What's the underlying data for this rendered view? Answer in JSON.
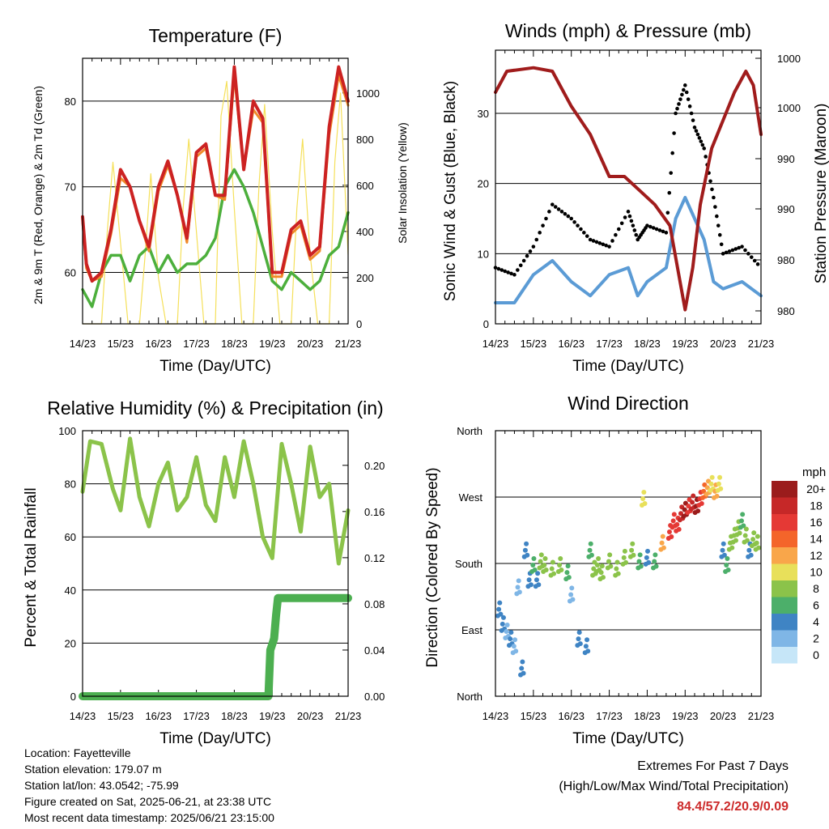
{
  "chart_data": [
    {
      "type": "line",
      "title": "Temperature (F)",
      "xlabel": "Time (Day/UTC)",
      "ylabel": "2m & 9m T (Red, Orange) & 2m Td (Green)",
      "y2label": "Solar Insolation (Yellow)",
      "x_ticks": [
        "14/23",
        "15/23",
        "16/23",
        "17/23",
        "18/23",
        "19/23",
        "20/23",
        "21/23"
      ],
      "ylim": [
        54,
        85
      ],
      "y_ticks": [
        60,
        70,
        80
      ],
      "y2lim": [
        0,
        1150
      ],
      "y2_ticks": [
        0,
        200,
        400,
        600,
        800,
        1000
      ],
      "grid": true,
      "series": [
        {
          "name": "2m T",
          "color": "#cc2222",
          "x": [
            0,
            0.1,
            0.25,
            0.5,
            0.75,
            1,
            1.25,
            1.5,
            1.75,
            2,
            2.25,
            2.5,
            2.75,
            3,
            3.25,
            3.5,
            3.75,
            4,
            4.25,
            4.5,
            4.75,
            5,
            5.25,
            5.5,
            5.75,
            6,
            6.25,
            6.5,
            6.75,
            7
          ],
          "y": [
            66.5,
            61,
            59,
            60,
            65,
            72,
            70,
            66,
            63,
            70,
            73,
            69,
            64,
            74,
            75,
            69,
            69,
            84,
            72,
            80,
            78,
            60,
            60,
            65,
            66,
            62,
            63,
            77,
            84,
            80
          ]
        },
        {
          "name": "9m T",
          "color": "#f08a2a",
          "x": [
            0,
            0.1,
            0.25,
            0.5,
            0.75,
            1,
            1.25,
            1.5,
            1.75,
            2,
            2.25,
            2.5,
            2.75,
            3,
            3.25,
            3.5,
            3.75,
            4,
            4.25,
            4.5,
            4.75,
            5,
            5.25,
            5.5,
            5.75,
            6,
            6.25,
            6.5,
            6.75,
            7
          ],
          "y": [
            66,
            60.5,
            59,
            59.5,
            64.5,
            71,
            70,
            66,
            62.5,
            69.5,
            72.5,
            69,
            63.5,
            73.5,
            74.5,
            69,
            68.5,
            83,
            72,
            79,
            77.5,
            59.5,
            59.5,
            64.5,
            65.5,
            61.5,
            62.5,
            76,
            83,
            79.5
          ]
        },
        {
          "name": "2m Td",
          "color": "#4caf3c",
          "x": [
            0,
            0.25,
            0.5,
            0.75,
            1,
            1.25,
            1.5,
            1.75,
            2,
            2.25,
            2.5,
            2.75,
            3,
            3.25,
            3.5,
            3.75,
            4,
            4.25,
            4.5,
            4.75,
            5,
            5.25,
            5.5,
            5.75,
            6,
            6.25,
            6.5,
            6.75,
            7
          ],
          "y": [
            58,
            56,
            60,
            62,
            62,
            59,
            62,
            63,
            60,
            62,
            60,
            61,
            61,
            62,
            64,
            70,
            72,
            70,
            67,
            63,
            59,
            58,
            60,
            59,
            58,
            59,
            62,
            63,
            67
          ]
        },
        {
          "name": "Solar Insolation",
          "color": "#f5e05a",
          "axis": "y2",
          "x": [
            0,
            0.5,
            0.65,
            0.8,
            1,
            1.2,
            1.5,
            1.65,
            1.8,
            2,
            2.2,
            2.5,
            2.65,
            2.8,
            3,
            3.2,
            3.5,
            3.65,
            3.8,
            4,
            4.2,
            4.5,
            4.65,
            4.8,
            5,
            5.2,
            5.5,
            5.65,
            5.8,
            6,
            6.2,
            6.5,
            6.65,
            6.8,
            7
          ],
          "y": [
            0,
            0,
            400,
            700,
            350,
            0,
            0,
            300,
            650,
            200,
            0,
            0,
            500,
            800,
            400,
            0,
            0,
            900,
            1050,
            500,
            0,
            0,
            600,
            950,
            400,
            0,
            0,
            500,
            800,
            300,
            0,
            0,
            700,
            1000,
            300
          ]
        }
      ]
    },
    {
      "type": "scatter",
      "title": "Winds (mph) & Pressure (mb)",
      "xlabel": "Time (Day/UTC)",
      "ylabel": "Sonic Wind & Gust (Blue, Black)",
      "y2label": "Station Pressure (Maroon)",
      "x_ticks": [
        "14/23",
        "15/23",
        "16/23",
        "17/23",
        "18/23",
        "19/23",
        "20/23",
        "21/23"
      ],
      "ylim": [
        0,
        39
      ],
      "y_ticks": [
        0,
        10,
        20,
        30
      ],
      "y2_tick_labels": [
        "980",
        "980",
        "990",
        "990",
        "1000",
        "1000"
      ],
      "grid": true,
      "series": [
        {
          "name": "Gust",
          "color": "#000000",
          "x": [
            0,
            0.5,
            1,
            1.5,
            2,
            2.5,
            3,
            3.5,
            3.75,
            4,
            4.5,
            4.75,
            5,
            5.25,
            5.5,
            5.75,
            6,
            6.5,
            7
          ],
          "y": [
            8,
            7,
            11,
            17,
            15,
            12,
            11,
            16,
            12,
            14,
            13,
            30,
            34,
            28,
            25,
            18,
            10,
            11,
            8
          ]
        },
        {
          "name": "Sonic Wind",
          "color": "#5b9bd5",
          "x": [
            0,
            0.5,
            1,
            1.5,
            2,
            2.5,
            3,
            3.5,
            3.75,
            4,
            4.5,
            4.75,
            5,
            5.25,
            5.5,
            5.75,
            6,
            6.5,
            7
          ],
          "y": [
            3,
            3,
            7,
            9,
            6,
            4,
            7,
            8,
            4,
            6,
            8,
            15,
            18,
            15,
            12,
            6,
            5,
            6,
            4
          ]
        },
        {
          "name": "Station Pressure",
          "color": "#a01c1c",
          "x": [
            0,
            0.3,
            1,
            1.5,
            2,
            2.5,
            3,
            3.4,
            3.8,
            4.2,
            4.6,
            5,
            5.2,
            5.4,
            5.7,
            6,
            6.3,
            6.6,
            6.8,
            7
          ],
          "y": [
            33,
            36,
            36.5,
            36,
            31,
            27,
            21,
            21,
            19,
            17,
            14,
            2,
            8,
            17,
            25,
            29,
            33,
            36,
            34,
            27
          ]
        }
      ]
    },
    {
      "type": "line",
      "title": "Relative Humidity (%) & Precipitation (in)",
      "xlabel": "Time (Day/UTC)",
      "ylabel": "Percent & Total Rainfall",
      "x_ticks": [
        "14/23",
        "15/23",
        "16/23",
        "17/23",
        "18/23",
        "19/23",
        "20/23",
        "21/23"
      ],
      "ylim": [
        0,
        100
      ],
      "y_ticks": [
        0,
        20,
        40,
        60,
        80,
        100
      ],
      "y2lim": [
        0,
        0.23
      ],
      "y2_ticks": [
        "0.00",
        "0.04",
        "0.08",
        "0.12",
        "0.16",
        "0.20"
      ],
      "grid": true,
      "series": [
        {
          "name": "Relative Humidity",
          "color": "#8bc34a",
          "x": [
            0,
            0.2,
            0.5,
            0.8,
            1,
            1.25,
            1.5,
            1.75,
            2,
            2.25,
            2.5,
            2.75,
            3,
            3.25,
            3.5,
            3.75,
            4,
            4.25,
            4.5,
            4.75,
            5,
            5.25,
            5.5,
            5.75,
            6,
            6.25,
            6.5,
            6.75,
            7
          ],
          "y": [
            77,
            96,
            95,
            78,
            70,
            97,
            75,
            64,
            80,
            88,
            70,
            75,
            90,
            72,
            66,
            90,
            75,
            96,
            80,
            60,
            52,
            95,
            80,
            62,
            94,
            75,
            80,
            50,
            70
          ]
        },
        {
          "name": "Precipitation",
          "color": "#4caf50",
          "axis": "y2",
          "x": [
            0,
            4.9,
            4.95,
            5.0,
            5.05,
            5.1,
            5.15,
            5.2,
            7
          ],
          "y": [
            0,
            0,
            0.04,
            0.045,
            0.05,
            0.07,
            0.085,
            0.085,
            0.085
          ]
        }
      ]
    },
    {
      "type": "scatter",
      "title": "Wind Direction",
      "xlabel": "Time (Day/UTC)",
      "ylabel": "Direction (Colored By Speed)",
      "x_ticks": [
        "14/23",
        "15/23",
        "16/23",
        "17/23",
        "18/23",
        "19/23",
        "20/23",
        "21/23"
      ],
      "y_tick_labels": [
        "North",
        "East",
        "South",
        "West",
        "North"
      ],
      "ylim": [
        0,
        360
      ],
      "grid": true,
      "colorbar": {
        "title": "mph",
        "labels": [
          "20+",
          "18",
          "16",
          "14",
          "12",
          "10",
          "8",
          "6",
          "4",
          "2",
          "0"
        ],
        "colors": [
          "#9b1c1c",
          "#c62828",
          "#e53935",
          "#f4652a",
          "#f9a64a",
          "#e8e05a",
          "#8bc34a",
          "#4caf6a",
          "#3f84c4",
          "#7fb6e6",
          "#c6e6f8"
        ]
      },
      "points": {
        "x": [
          0.1,
          0.2,
          0.3,
          0.4,
          0.5,
          0.6,
          0.7,
          0.8,
          0.9,
          1,
          1.1,
          1.2,
          1.3,
          1.5,
          1.7,
          1.9,
          2,
          2.2,
          2.4,
          2.5,
          2.6,
          2.7,
          2.8,
          3,
          3.2,
          3.4,
          3.6,
          3.8,
          3.9,
          4,
          4.2,
          4.4,
          4.6,
          4.7,
          4.8,
          4.9,
          5,
          5.1,
          5.2,
          5.3,
          5.4,
          5.5,
          5.6,
          5.7,
          5.8,
          5.9,
          6,
          6.1,
          6.2,
          6.3,
          6.4,
          6.5,
          6.6,
          6.7,
          6.8,
          6.9
        ],
        "y": [
          120,
          100,
          90,
          80,
          70,
          150,
          40,
          200,
          160,
          180,
          160,
          185,
          180,
          175,
          180,
          170,
          140,
          80,
          70,
          200,
          175,
          180,
          170,
          185,
          175,
          190,
          200,
          185,
          270,
          190,
          185,
          210,
          225,
          240,
          235,
          250,
          255,
          260,
          265,
          260,
          270,
          280,
          285,
          290,
          280,
          290,
          200,
          180,
          210,
          220,
          230,
          240,
          220,
          200,
          215,
          210
        ],
        "speed": [
          3,
          3,
          2,
          3,
          2,
          2,
          3,
          4,
          3,
          6,
          4,
          7,
          8,
          7,
          8,
          6,
          2,
          3,
          4,
          5,
          7,
          8,
          8,
          8,
          7,
          8,
          8,
          6,
          9,
          4,
          6,
          12,
          15,
          16,
          15,
          18,
          20,
          16,
          18,
          20,
          15,
          14,
          12,
          10,
          12,
          9,
          4,
          6,
          7,
          8,
          8,
          6,
          7,
          4,
          7,
          8
        ]
      }
    }
  ],
  "footer": {
    "location": "Location: Fayetteville",
    "elevation": "Station elevation: 179.07 m",
    "latlon": "Station lat/lon: 43.0542; -75.99",
    "created": "Figure created on Sat, 2025-06-21, at 23:38 UTC",
    "recent": "Most recent data timestamp: 2025/06/21 23:15:00"
  },
  "extremes": {
    "heading": "Extremes For Past 7 Days",
    "subheading": "(High/Low/Max Wind/Total Precipitation)",
    "values": "84.4/57.2/20.9/0.09"
  }
}
